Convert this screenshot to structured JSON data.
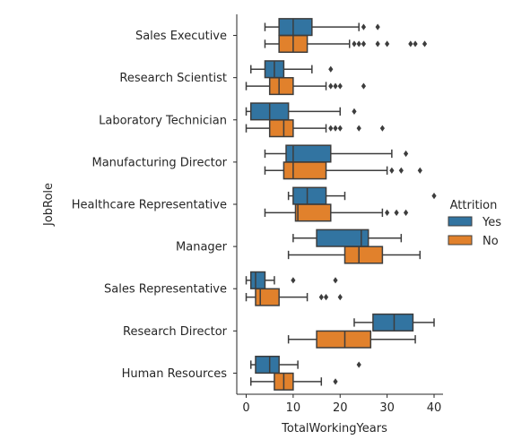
{
  "chart_data": {
    "type": "boxplot",
    "orientation": "horizontal",
    "xlabel": "TotalWorkingYears",
    "ylabel": "JobRole",
    "xlim": [
      -1.5,
      42
    ],
    "xticks": [
      0,
      10,
      20,
      30,
      40
    ],
    "grid": false,
    "legend": {
      "title": "Attrition",
      "position": "right",
      "entries": [
        {
          "name": "Yes",
          "color": "#3274a1"
        },
        {
          "name": "No",
          "color": "#e1812c"
        }
      ]
    },
    "categories": [
      "Sales Executive",
      "Research Scientist",
      "Laboratory Technician",
      "Manufacturing Director",
      "Healthcare Representative",
      "Manager",
      "Sales Representative",
      "Research Director",
      "Human Resources"
    ],
    "series": [
      {
        "name": "Yes",
        "color": "#3274a1",
        "boxes": [
          {
            "whislo": 4,
            "q1": 7,
            "med": 10,
            "q3": 14,
            "whishi": 24,
            "fliers": [
              25,
              28
            ]
          },
          {
            "whislo": 1,
            "q1": 4,
            "med": 6,
            "q3": 8,
            "whishi": 14,
            "fliers": [
              18
            ]
          },
          {
            "whislo": 0,
            "q1": 1,
            "med": 5,
            "q3": 9,
            "whishi": 20,
            "fliers": [
              23
            ]
          },
          {
            "whislo": 4,
            "q1": 8.5,
            "med": 10,
            "q3": 18,
            "whishi": 31,
            "fliers": [
              34
            ]
          },
          {
            "whislo": 9,
            "q1": 10,
            "med": 13,
            "q3": 17,
            "whishi": 21,
            "fliers": [
              40
            ]
          },
          {
            "whislo": 10,
            "q1": 15,
            "med": 24.5,
            "q3": 26,
            "whishi": 33,
            "fliers": []
          },
          {
            "whislo": 0,
            "q1": 1,
            "med": 2,
            "q3": 4,
            "whishi": 6,
            "fliers": [
              10,
              19
            ]
          },
          {
            "whislo": 23,
            "q1": 27,
            "med": 31.5,
            "q3": 35.5,
            "whishi": 40,
            "fliers": []
          },
          {
            "whislo": 1,
            "q1": 2,
            "med": 5,
            "q3": 7,
            "whishi": 11,
            "fliers": [
              24
            ]
          }
        ]
      },
      {
        "name": "No",
        "color": "#e1812c",
        "boxes": [
          {
            "whislo": 4,
            "q1": 7,
            "med": 10,
            "q3": 13,
            "whishi": 22,
            "fliers": [
              23,
              24,
              25,
              28,
              30,
              35,
              36,
              38
            ]
          },
          {
            "whislo": 0,
            "q1": 5,
            "med": 7,
            "q3": 10,
            "whishi": 17,
            "fliers": [
              18,
              19,
              20,
              25
            ]
          },
          {
            "whislo": 0,
            "q1": 5,
            "med": 8,
            "q3": 10,
            "whishi": 17,
            "fliers": [
              18,
              19,
              20,
              24,
              29
            ]
          },
          {
            "whislo": 4,
            "q1": 8,
            "med": 10,
            "q3": 17,
            "whishi": 30,
            "fliers": [
              31,
              33,
              37
            ]
          },
          {
            "whislo": 4,
            "q1": 10.5,
            "med": 11,
            "q3": 18,
            "whishi": 29,
            "fliers": [
              30,
              32,
              34
            ]
          },
          {
            "whislo": 9,
            "q1": 21,
            "med": 24,
            "q3": 29,
            "whishi": 37,
            "fliers": []
          },
          {
            "whislo": 0,
            "q1": 2,
            "med": 3,
            "q3": 7,
            "whishi": 13,
            "fliers": [
              16,
              17,
              20
            ]
          },
          {
            "whislo": 9,
            "q1": 15,
            "med": 21,
            "q3": 26.5,
            "whishi": 36,
            "fliers": []
          },
          {
            "whislo": 1,
            "q1": 6,
            "med": 8,
            "q3": 10,
            "whishi": 16,
            "fliers": [
              19
            ]
          }
        ]
      }
    ]
  }
}
